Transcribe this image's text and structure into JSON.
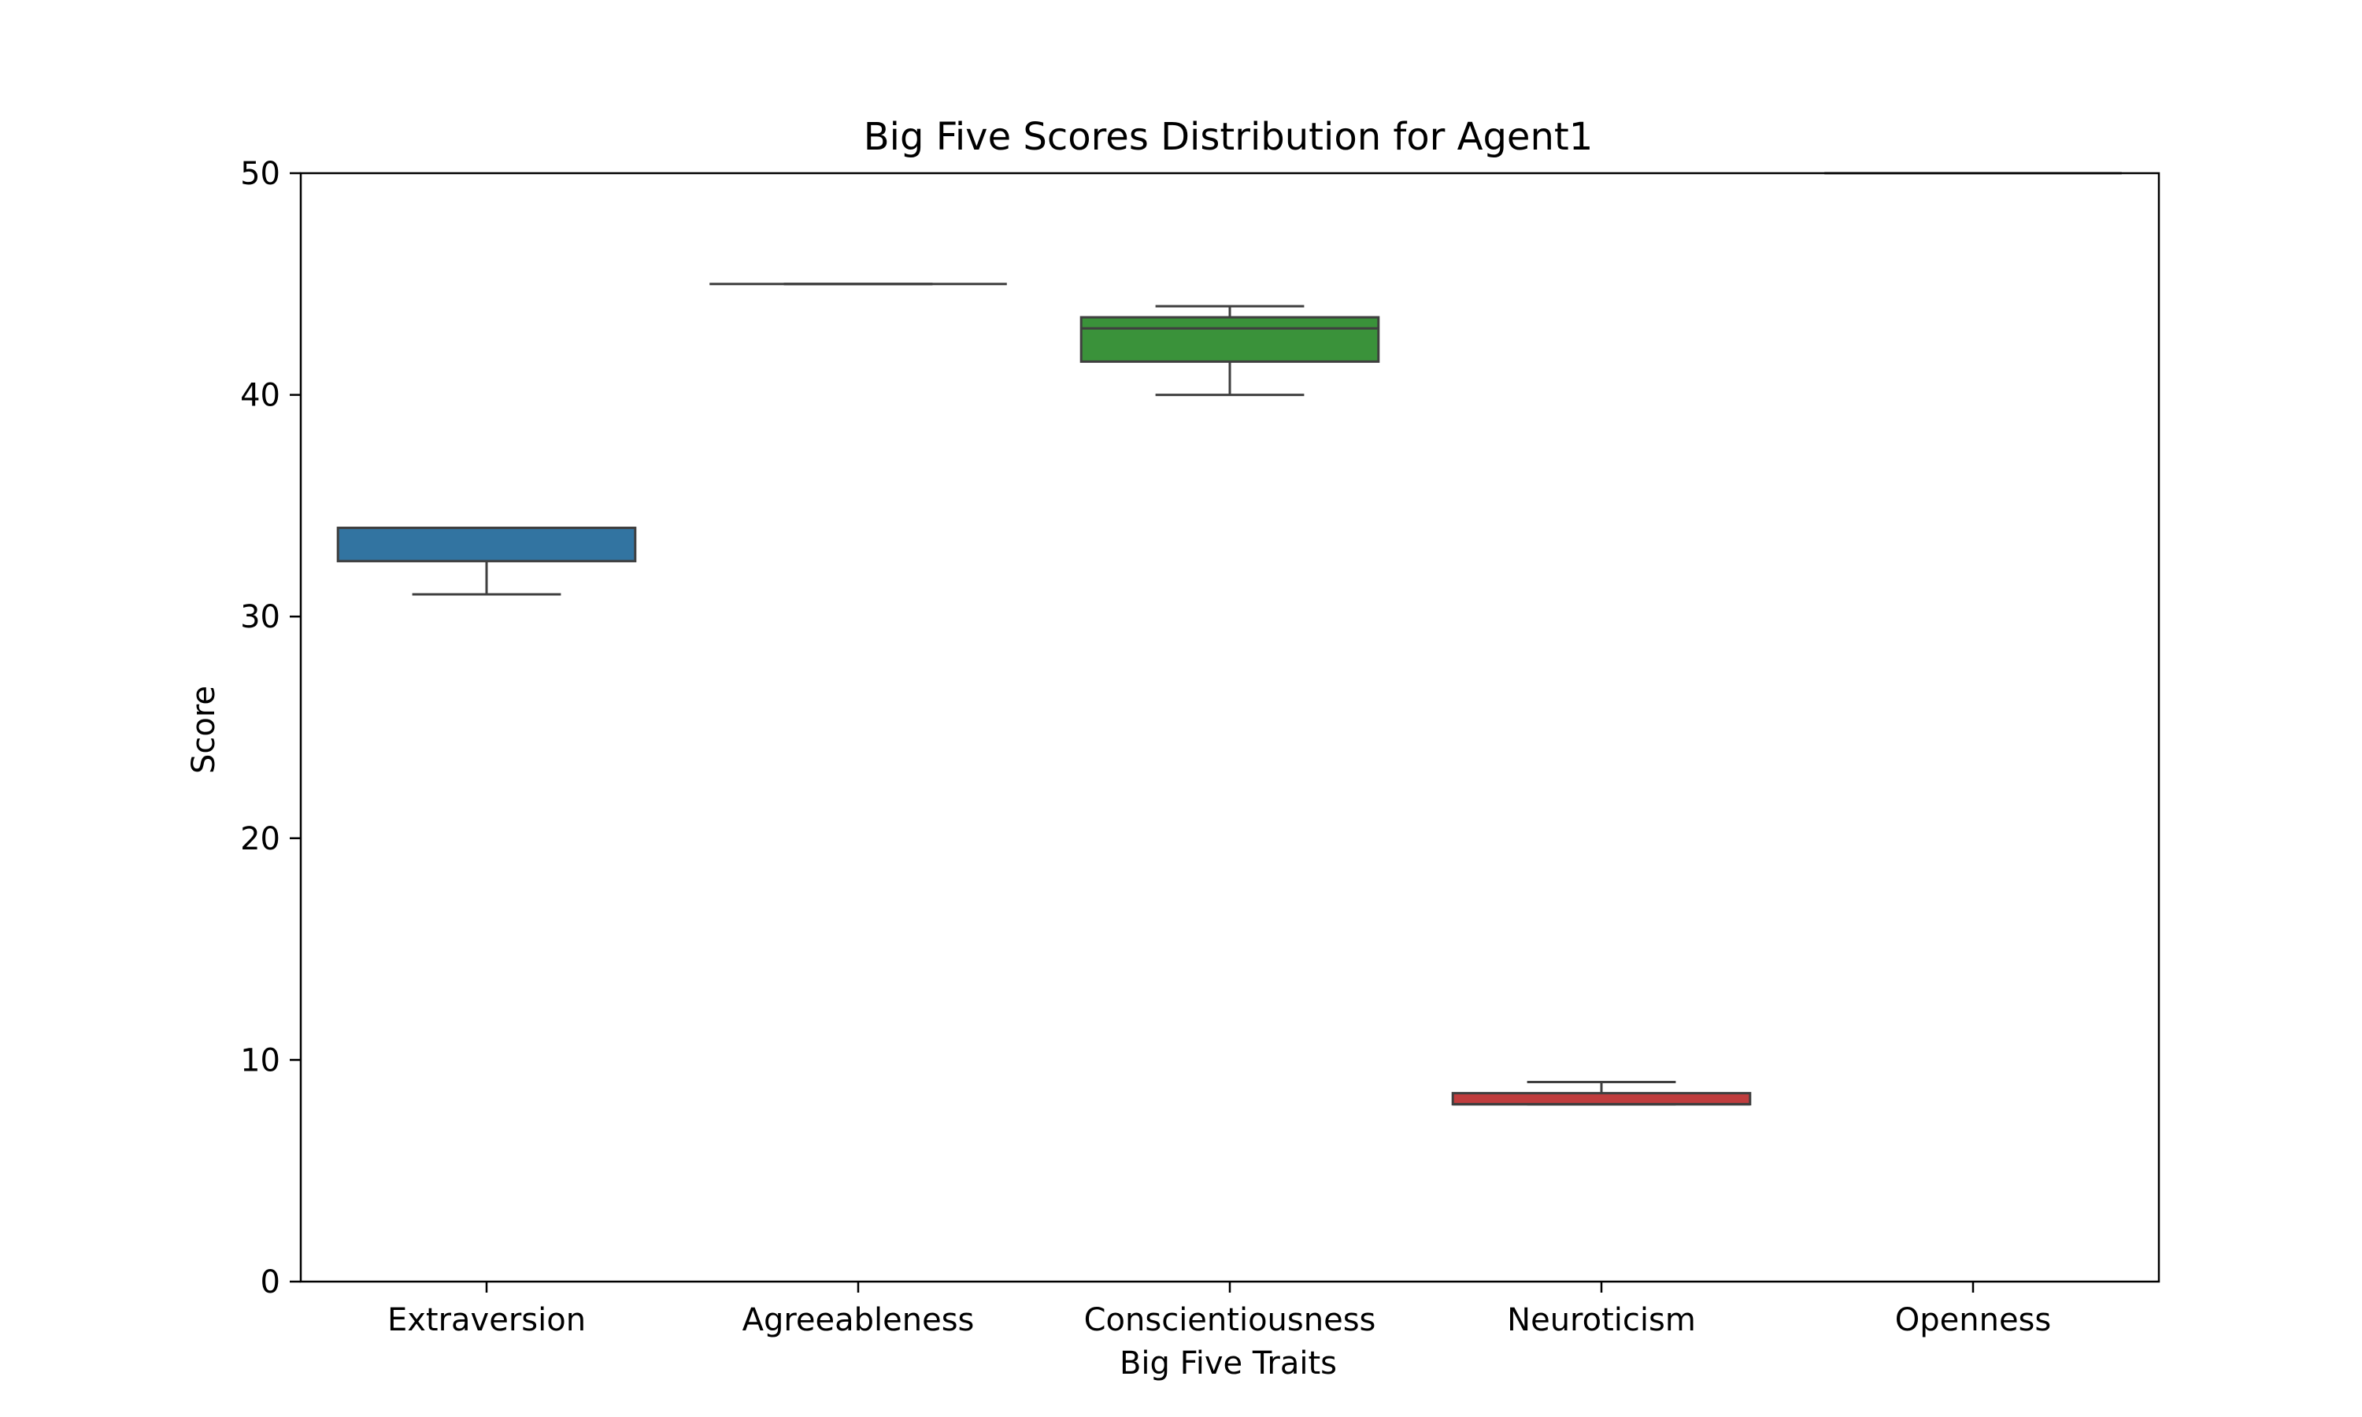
{
  "chart_data": {
    "type": "box",
    "title": "Big Five Scores Distribution for Agent1",
    "xlabel": "Big Five Traits",
    "ylabel": "Score",
    "ylim": [
      0,
      50
    ],
    "yticks": [
      0,
      10,
      20,
      30,
      40,
      50
    ],
    "grid": false,
    "categories": [
      "Extraversion",
      "Agreeableness",
      "Conscientiousness",
      "Neuroticism",
      "Openness"
    ],
    "boxes": [
      {
        "category": "Extraversion",
        "whisker_low": 31,
        "q1": 32.5,
        "median": 34,
        "q3": 34,
        "whisker_high": 34,
        "color": "#3274a1"
      },
      {
        "category": "Agreeableness",
        "whisker_low": 45,
        "q1": 45,
        "median": 45,
        "q3": 45,
        "whisker_high": 45,
        "color": "#e1812c"
      },
      {
        "category": "Conscientiousness",
        "whisker_low": 40,
        "q1": 41.5,
        "median": 43,
        "q3": 43.5,
        "whisker_high": 44,
        "color": "#3a923a"
      },
      {
        "category": "Neuroticism",
        "whisker_low": 8,
        "q1": 8,
        "median": 8,
        "q3": 8.5,
        "whisker_high": 9,
        "color": "#c03d3e"
      },
      {
        "category": "Openness",
        "whisker_low": 50,
        "q1": 50,
        "median": 50,
        "q3": 50,
        "whisker_high": 50,
        "color": "#9372b2"
      }
    ]
  }
}
